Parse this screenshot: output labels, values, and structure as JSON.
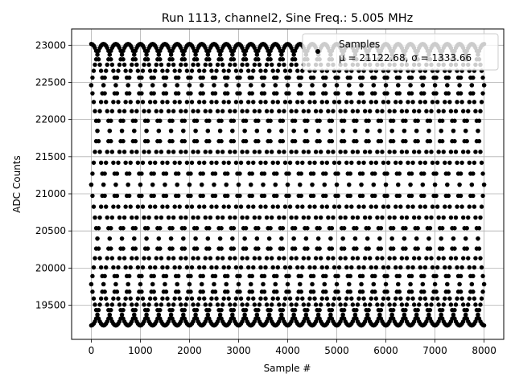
{
  "chart_data": {
    "type": "scatter",
    "title": "Run 1113, channel2, Sine Freq.: 5.005 MHz",
    "xlabel": "Sample #",
    "ylabel": "ADC Counts",
    "xlim": [
      -400,
      8400
    ],
    "ylim": [
      19040,
      23220
    ],
    "xticks": [
      0,
      1000,
      2000,
      3000,
      4000,
      5000,
      6000,
      7000,
      8000
    ],
    "yticks": [
      19500,
      20000,
      20500,
      21000,
      21500,
      22000,
      22500,
      23000
    ],
    "grid": true,
    "legend": {
      "placement": "top-right",
      "title": "Samples",
      "entry": "μ = 21122.68, σ = 1333.66"
    },
    "series": [
      {
        "name": "Samples",
        "color": "#000000",
        "model": "sine",
        "mean": 21122.68,
        "amplitude": 1895,
        "period_samples": 2000,
        "phases_deg": [
          0,
          45,
          90,
          135,
          180,
          225,
          270,
          315
        ],
        "x_range": [
          0,
          8000
        ],
        "points_per_trace": 320
      }
    ]
  }
}
